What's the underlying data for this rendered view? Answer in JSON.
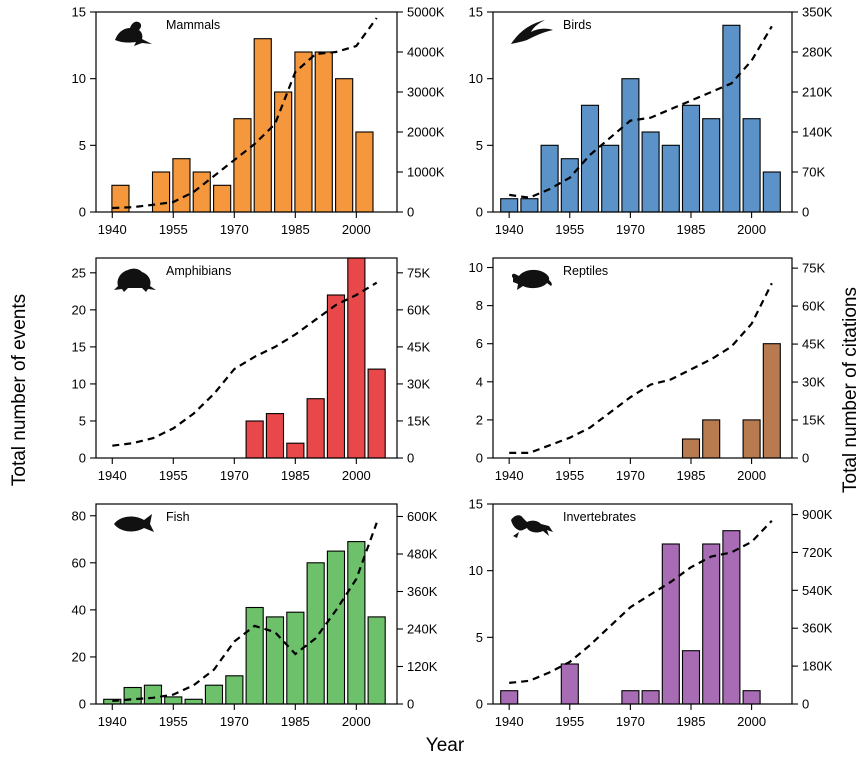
{
  "figure": {
    "ylabel_left": "Total number of events",
    "ylabel_right": "Total number of citations",
    "xlabel": "Year"
  },
  "chart_data": [
    {
      "type": "bar",
      "title": "Mammals",
      "icon": "seal-icon",
      "color": "#f5973c",
      "x": [
        1942,
        1952,
        1957,
        1962,
        1967,
        1972,
        1977,
        1982,
        1987,
        1992,
        1997,
        2002
      ],
      "values": [
        2,
        3,
        4,
        3,
        2,
        7,
        13,
        9,
        12,
        12,
        10,
        6
      ],
      "ylim": [
        0,
        15
      ],
      "yticks": [
        0,
        5,
        10,
        15
      ],
      "citations_line": {
        "x": [
          1940,
          1945,
          1950,
          1955,
          1960,
          1965,
          1970,
          1975,
          1980,
          1985,
          1990,
          1995,
          2000,
          2005
        ],
        "values": [
          100,
          120,
          180,
          250,
          500,
          900,
          1300,
          1700,
          2200,
          3500,
          3950,
          4000,
          4150,
          4850
        ],
        "ylim": [
          0,
          5000
        ],
        "yticks": [
          0,
          1000,
          2000,
          3000,
          4000,
          5000
        ],
        "ytick_labels": [
          "0",
          "1000K",
          "2000K",
          "3000K",
          "4000K",
          "5000K"
        ]
      }
    },
    {
      "type": "bar",
      "title": "Birds",
      "icon": "swift-icon",
      "color": "#5b93c9",
      "x": [
        1940,
        1945,
        1950,
        1955,
        1960,
        1965,
        1970,
        1975,
        1980,
        1985,
        1990,
        1995,
        2000,
        2005
      ],
      "values": [
        1,
        1,
        5,
        4,
        8,
        5,
        10,
        6,
        5,
        8,
        7,
        14,
        7,
        3
      ],
      "ylim": [
        0,
        15
      ],
      "yticks": [
        0,
        5,
        10,
        15
      ],
      "citations_line": {
        "x": [
          1940,
          1945,
          1950,
          1955,
          1960,
          1965,
          1970,
          1975,
          1980,
          1985,
          1990,
          1995,
          2000,
          2005
        ],
        "values": [
          30,
          25,
          40,
          60,
          100,
          130,
          160,
          165,
          180,
          195,
          210,
          225,
          265,
          325
        ],
        "ylim": [
          0,
          350
        ],
        "yticks": [
          0,
          70,
          140,
          210,
          280,
          350
        ],
        "ytick_labels": [
          "0",
          "70K",
          "140K",
          "210K",
          "280K",
          "350K"
        ]
      }
    },
    {
      "type": "bar",
      "title": "Amphibians",
      "icon": "frog-icon",
      "color": "#e8484a",
      "x": [
        1975,
        1980,
        1985,
        1990,
        1995,
        2000,
        2005
      ],
      "values": [
        5,
        6,
        2,
        8,
        22,
        27,
        12
      ],
      "ylim": [
        0,
        27
      ],
      "yticks": [
        0,
        5,
        10,
        15,
        20,
        25
      ],
      "citations_line": {
        "x": [
          1940,
          1945,
          1950,
          1955,
          1960,
          1965,
          1970,
          1975,
          1980,
          1985,
          1990,
          1995,
          2000,
          2005
        ],
        "values": [
          5,
          6,
          8,
          12,
          18,
          26,
          36,
          41,
          45,
          50,
          56,
          62,
          66,
          71
        ],
        "ylim": [
          0,
          81
        ],
        "yticks": [
          0,
          15,
          30,
          45,
          60,
          75
        ],
        "ytick_labels": [
          "0",
          "15K",
          "30K",
          "45K",
          "60K",
          "75K"
        ]
      }
    },
    {
      "type": "bar",
      "title": "Reptiles",
      "icon": "turtle-icon",
      "color": "#b87a4f",
      "x": [
        1985,
        1990,
        1995,
        2000,
        2005
      ],
      "values": [
        1,
        2,
        0,
        2,
        6
      ],
      "ylim": [
        0,
        10.5
      ],
      "yticks": [
        0,
        2,
        4,
        6,
        8,
        10
      ],
      "citations_line": {
        "x": [
          1940,
          1945,
          1950,
          1955,
          1960,
          1965,
          1970,
          1975,
          1980,
          1985,
          1990,
          1995,
          2000,
          2005
        ],
        "values": [
          2,
          2,
          5,
          8,
          12,
          18,
          24,
          29,
          31,
          35,
          39,
          44,
          53,
          69
        ],
        "ylim": [
          0,
          79
        ],
        "yticks": [
          0,
          15,
          30,
          45,
          60,
          75
        ],
        "ytick_labels": [
          "0",
          "15K",
          "30K",
          "45K",
          "60K",
          "75K"
        ]
      }
    },
    {
      "type": "bar",
      "title": "Fish",
      "icon": "fish-icon",
      "color": "#6cc16a",
      "x": [
        1940,
        1945,
        1950,
        1955,
        1960,
        1965,
        1970,
        1975,
        1980,
        1985,
        1990,
        1995,
        2000,
        2005
      ],
      "values": [
        2,
        7,
        8,
        3,
        2,
        8,
        12,
        41,
        37,
        39,
        60,
        65,
        69,
        37
      ],
      "ylim": [
        0,
        85
      ],
      "yticks": [
        0,
        20,
        40,
        60,
        80
      ],
      "citations_line": {
        "x": [
          1940,
          1945,
          1950,
          1955,
          1960,
          1965,
          1970,
          1975,
          1980,
          1985,
          1990,
          1995,
          2000,
          2005
        ],
        "values": [
          10,
          15,
          20,
          30,
          60,
          110,
          200,
          250,
          230,
          160,
          210,
          300,
          400,
          580
        ],
        "ylim": [
          0,
          640
        ],
        "yticks": [
          0,
          120,
          240,
          360,
          480,
          600
        ],
        "ytick_labels": [
          "0",
          "120K",
          "240K",
          "360K",
          "480K",
          "600K"
        ]
      }
    },
    {
      "type": "bar",
      "title": "Invertebrates",
      "icon": "lobster-icon",
      "color": "#a86cb5",
      "x": [
        1940,
        1955,
        1970,
        1975,
        1980,
        1985,
        1990,
        1995,
        2000
      ],
      "values": [
        1,
        3,
        1,
        1,
        12,
        4,
        12,
        13,
        1
      ],
      "ylim": [
        0,
        15
      ],
      "yticks": [
        0,
        5,
        10,
        15
      ],
      "citations_line": {
        "x": [
          1940,
          1945,
          1950,
          1955,
          1960,
          1965,
          1970,
          1975,
          1980,
          1985,
          1990,
          1995,
          2000,
          2005
        ],
        "values": [
          100,
          110,
          150,
          200,
          280,
          370,
          460,
          520,
          580,
          650,
          700,
          720,
          770,
          870
        ],
        "ylim": [
          0,
          950
        ],
        "yticks": [
          0,
          180,
          360,
          540,
          720,
          900
        ],
        "ytick_labels": [
          "0",
          "180K",
          "360K",
          "540K",
          "720K",
          "900K"
        ]
      }
    }
  ],
  "x_axis": {
    "ticks": [
      1940,
      1955,
      1970,
      1985,
      2000
    ],
    "xlim": [
      1936,
      2010
    ]
  }
}
